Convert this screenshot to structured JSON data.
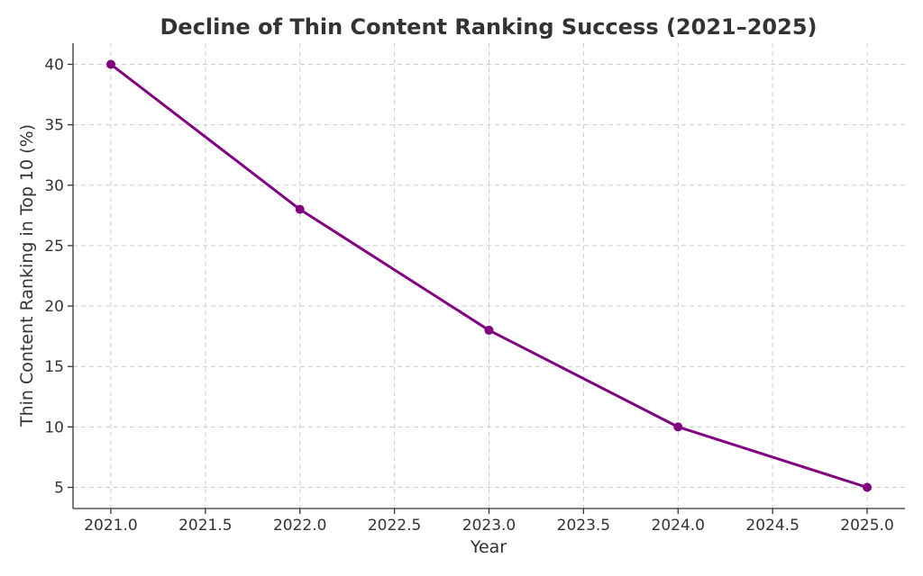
{
  "chart_data": {
    "type": "line",
    "title": "Decline of Thin Content Ranking Success (2021–2025)",
    "xlabel": "Year",
    "ylabel": "Thin Content Ranking in Top 10 (%)",
    "x": [
      2021,
      2022,
      2023,
      2024,
      2025
    ],
    "series": [
      {
        "values": [
          40,
          28,
          18,
          10,
          5
        ],
        "color": "#800080",
        "marker": "circle"
      }
    ],
    "xlim": [
      2020.8,
      2025.2
    ],
    "ylim": [
      3.25,
      41.75
    ],
    "xticks": [
      2021.0,
      2021.5,
      2022.0,
      2022.5,
      2023.0,
      2023.5,
      2024.0,
      2024.5,
      2025.0
    ],
    "xtick_labels": [
      "2021.0",
      "2021.5",
      "2022.0",
      "2022.5",
      "2023.0",
      "2023.5",
      "2024.0",
      "2024.5",
      "2025.0"
    ],
    "yticks": [
      5,
      10,
      15,
      20,
      25,
      30,
      35,
      40
    ],
    "ytick_labels": [
      "5",
      "10",
      "15",
      "20",
      "25",
      "30",
      "35",
      "40"
    ],
    "grid": true,
    "grid_style": "dashed",
    "legend": "none",
    "colors": {
      "text": "#333333",
      "grid": "#cccccc",
      "line": "#800080"
    }
  }
}
